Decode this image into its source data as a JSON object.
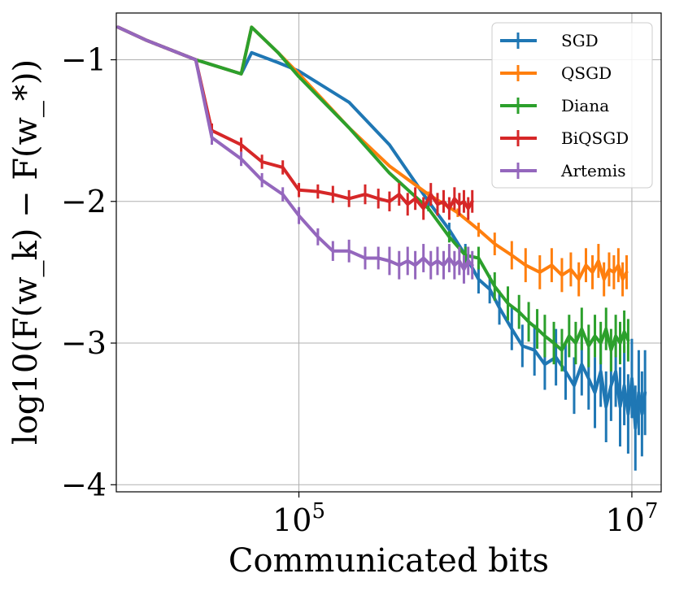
{
  "chart_data": {
    "type": "line",
    "xlabel": "Communicated bits",
    "ylabel": "log10(F(w_k) − F(w_*))",
    "xscale": "log",
    "xlim": [
      8000,
      15000000
    ],
    "ylim": [
      -4.05,
      -0.67
    ],
    "x_ticks": [
      {
        "value": 100000,
        "label": "10^5"
      },
      {
        "value": 10000000,
        "label": "10^7"
      }
    ],
    "y_ticks": [
      {
        "value": -1,
        "label": "−1"
      },
      {
        "value": -2,
        "label": "−2"
      },
      {
        "value": -3,
        "label": "−3"
      },
      {
        "value": -4,
        "label": "−4"
      }
    ],
    "grid": true,
    "legend": "top-right",
    "series": [
      {
        "name": "SGD",
        "color": "#1f77b4",
        "x": [
          8200,
          12000,
          24000,
          45000,
          52000,
          75000,
          100000,
          200000,
          350000,
          600000,
          800000,
          1000000,
          1200000,
          1400000,
          1600000,
          1900000,
          2200000,
          2600000,
          3000000,
          3500000,
          4000000,
          4500000,
          5000000,
          5500000,
          6000000,
          6500000,
          7000000,
          7500000,
          8000000,
          8500000,
          9000000,
          9500000,
          10000000,
          10500000,
          11000000,
          11500000,
          12000000
        ],
        "y": [
          -0.77,
          -0.86,
          -1.0,
          -1.1,
          -0.95,
          -1.02,
          -1.08,
          -1.3,
          -1.6,
          -2.0,
          -2.2,
          -2.38,
          -2.55,
          -2.62,
          -2.75,
          -2.9,
          -3.02,
          -3.05,
          -3.15,
          -3.1,
          -3.2,
          -3.3,
          -3.15,
          -3.25,
          -3.35,
          -3.2,
          -3.45,
          -3.3,
          -3.2,
          -3.45,
          -3.3,
          -3.5,
          -3.25,
          -3.6,
          -3.35,
          -3.5,
          -3.35
        ],
        "err": [
          0,
          0,
          0,
          0,
          0,
          0,
          0,
          0,
          0,
          0.03,
          0.05,
          0.08,
          0.1,
          0.1,
          0.12,
          0.15,
          0.15,
          0.18,
          0.18,
          0.2,
          0.2,
          0.2,
          0.22,
          0.22,
          0.25,
          0.25,
          0.25,
          0.25,
          0.25,
          0.28,
          0.28,
          0.28,
          0.28,
          0.3,
          0.3,
          0.3,
          0.3
        ]
      },
      {
        "name": "QSGD",
        "color": "#ff7f0e",
        "x": [
          8200,
          12000,
          24000,
          45000,
          52000,
          75000,
          100000,
          200000,
          350000,
          600000,
          900000,
          1200000,
          1500000,
          1900000,
          2300000,
          2800000,
          3300000,
          3800000,
          4300000,
          4800000,
          5300000,
          5800000,
          6300000,
          6800000,
          7300000,
          7800000,
          8300000,
          8800000,
          9300000
        ],
        "y": [
          -0.77,
          -0.86,
          -1.0,
          -1.1,
          -0.77,
          -0.95,
          -1.1,
          -1.48,
          -1.75,
          -1.95,
          -2.08,
          -2.2,
          -2.3,
          -2.38,
          -2.45,
          -2.5,
          -2.45,
          -2.52,
          -2.48,
          -2.55,
          -2.45,
          -2.5,
          -2.42,
          -2.55,
          -2.48,
          -2.5,
          -2.45,
          -2.55,
          -2.5
        ],
        "err": [
          0,
          0,
          0,
          0,
          0,
          0,
          0,
          0,
          0,
          0.02,
          0.03,
          0.05,
          0.08,
          0.1,
          0.12,
          0.12,
          0.12,
          0.12,
          0.12,
          0.12,
          0.12,
          0.12,
          0.12,
          0.12,
          0.12,
          0.12,
          0.12,
          0.12,
          0.12
        ]
      },
      {
        "name": "Diana",
        "color": "#2ca02c",
        "x": [
          8200,
          12000,
          24000,
          45000,
          52000,
          75000,
          100000,
          200000,
          350000,
          600000,
          800000,
          1000000,
          1200000,
          1500000,
          1800000,
          2100000,
          2400000,
          2700000,
          3000000,
          3400000,
          3800000,
          4200000,
          4600000,
          5000000,
          5500000,
          6000000,
          6500000,
          7000000,
          7500000,
          8000000,
          8500000,
          9000000,
          9500000
        ],
        "y": [
          -0.77,
          -0.86,
          -1.0,
          -1.1,
          -0.77,
          -0.95,
          -1.12,
          -1.48,
          -1.8,
          -2.05,
          -2.25,
          -2.38,
          -2.4,
          -2.6,
          -2.72,
          -2.78,
          -2.85,
          -2.9,
          -2.95,
          -3.0,
          -3.05,
          -2.95,
          -3.0,
          -2.9,
          -3.02,
          -2.95,
          -3.0,
          -2.9,
          -3.05,
          -2.95,
          -3.0,
          -2.92,
          -2.98
        ],
        "err": [
          0,
          0,
          0,
          0,
          0,
          0,
          0,
          0,
          0,
          0.02,
          0.04,
          0.06,
          0.08,
          0.1,
          0.12,
          0.12,
          0.14,
          0.14,
          0.15,
          0.15,
          0.15,
          0.15,
          0.15,
          0.15,
          0.15,
          0.15,
          0.15,
          0.15,
          0.15,
          0.15,
          0.15,
          0.15,
          0.15
        ]
      },
      {
        "name": "BiQSGD",
        "color": "#d62728",
        "x": [
          8200,
          12000,
          24000,
          30000,
          45000,
          60000,
          80000,
          100000,
          130000,
          160000,
          200000,
          250000,
          300000,
          350000,
          400000,
          450000,
          500000,
          560000,
          620000,
          680000,
          740000,
          800000,
          860000,
          920000,
          980000,
          1040000,
          1100000
        ],
        "y": [
          -0.77,
          -0.86,
          -1.0,
          -1.5,
          -1.6,
          -1.72,
          -1.76,
          -1.92,
          -1.93,
          -1.95,
          -1.98,
          -1.95,
          -1.98,
          -2.0,
          -1.95,
          -2.02,
          -1.98,
          -2.05,
          -1.95,
          -2.02,
          -2.0,
          -2.05,
          -1.98,
          -2.02,
          -2.0,
          -2.05,
          -2.0
        ],
        "err": [
          0,
          0,
          0,
          0.05,
          0.05,
          0.05,
          0.05,
          0.05,
          0.05,
          0.06,
          0.06,
          0.07,
          0.07,
          0.07,
          0.08,
          0.08,
          0.08,
          0.08,
          0.08,
          0.08,
          0.08,
          0.08,
          0.08,
          0.08,
          0.08,
          0.08,
          0.08
        ]
      },
      {
        "name": "Artemis",
        "color": "#9467bd",
        "x": [
          8200,
          12000,
          24000,
          30000,
          45000,
          60000,
          80000,
          100000,
          130000,
          160000,
          200000,
          250000,
          300000,
          350000,
          400000,
          450000,
          500000,
          560000,
          620000,
          680000,
          740000,
          800000,
          860000,
          920000,
          980000,
          1040000,
          1100000
        ],
        "y": [
          -0.77,
          -0.86,
          -1.0,
          -1.55,
          -1.7,
          -1.85,
          -1.95,
          -2.1,
          -2.25,
          -2.35,
          -2.35,
          -2.4,
          -2.4,
          -2.42,
          -2.45,
          -2.42,
          -2.45,
          -2.4,
          -2.45,
          -2.42,
          -2.45,
          -2.4,
          -2.45,
          -2.42,
          -2.48,
          -2.42,
          -2.45
        ],
        "err": [
          0,
          0,
          0,
          0.05,
          0.05,
          0.05,
          0.05,
          0.06,
          0.06,
          0.07,
          0.08,
          0.08,
          0.08,
          0.1,
          0.1,
          0.1,
          0.1,
          0.1,
          0.1,
          0.1,
          0.1,
          0.1,
          0.1,
          0.1,
          0.1,
          0.1,
          0.1
        ]
      }
    ]
  }
}
